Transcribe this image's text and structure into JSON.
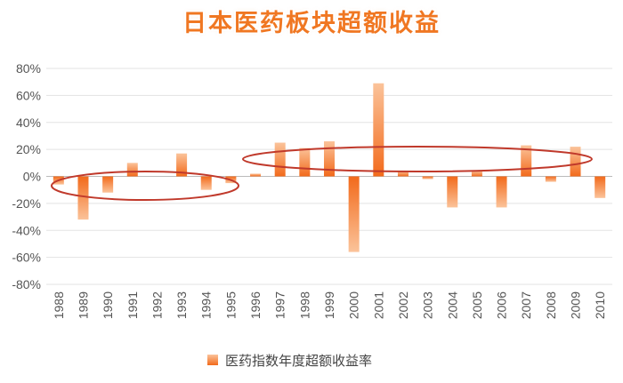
{
  "chart_data": {
    "type": "bar",
    "title": "日本医药板块超额收益",
    "categories": [
      "1988",
      "1989",
      "1990",
      "1991",
      "1992",
      "1993",
      "1994",
      "1995",
      "1996",
      "1997",
      "1998",
      "1999",
      "2000",
      "2001",
      "2002",
      "2003",
      "2004",
      "2005",
      "2006",
      "2007",
      "2008",
      "2009",
      "2010"
    ],
    "series": [
      {
        "name": "医药指数年度超额收益率",
        "values": [
          -6,
          -32,
          -12,
          10,
          0,
          17,
          -10,
          -5,
          2,
          25,
          21,
          26,
          -56,
          69,
          4,
          -2,
          -23,
          4,
          -23,
          23,
          -4,
          22,
          -16
        ]
      }
    ],
    "yticks": [
      "80%",
      "60%",
      "40%",
      "20%",
      "0%",
      "-20%",
      "-40%",
      "-60%",
      "-80%"
    ],
    "ylim": [
      -80,
      80
    ],
    "grid": true,
    "legend_position": "bottom",
    "colors": {
      "bar_dark": "#f26a1b",
      "bar_light": "#fbc39a",
      "ellipse": "#c0392b",
      "title": "#f07722"
    }
  }
}
